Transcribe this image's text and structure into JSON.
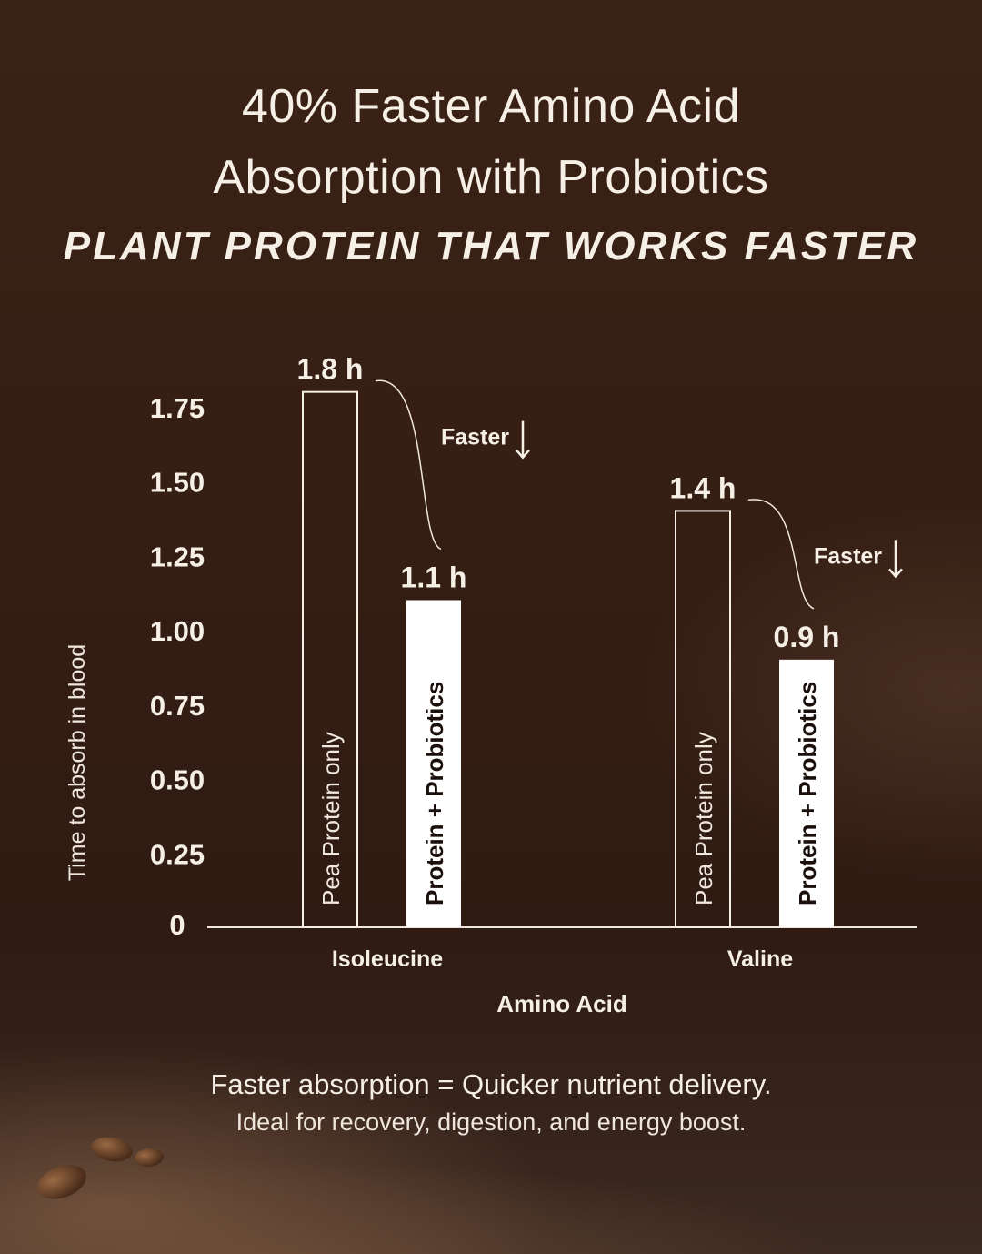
{
  "header": {
    "title_line1": "40% Faster Amino Acid",
    "title_line2": "Absorption with Probiotics",
    "subtitle": "PLANT PROTEIN THAT WORKS FASTER"
  },
  "chart_data": {
    "type": "bar",
    "categories": [
      "Isoleucine",
      "Valine"
    ],
    "series": [
      {
        "name": "Pea Protein only",
        "values": [
          1.8,
          1.4
        ],
        "labels": [
          "1.8 h",
          "1.4 h"
        ],
        "style": "outline"
      },
      {
        "name": "Protein + Probiotics",
        "values": [
          1.1,
          0.9
        ],
        "labels": [
          "1.1 h",
          "0.9 h"
        ],
        "style": "filled"
      }
    ],
    "annotation": "Faster",
    "yticks": [
      "0",
      "0.25",
      "0.50",
      "0.75",
      "1.00",
      "1.25",
      "1.50",
      "1.75"
    ],
    "ytick_values": [
      0,
      0.25,
      0.5,
      0.75,
      1.0,
      1.25,
      1.5,
      1.75
    ],
    "ylim": [
      0,
      1.9
    ],
    "xlabel": "Amino Acid",
    "ylabel": "Time to absorb in blood",
    "grid": false,
    "legend": "none"
  },
  "footer": {
    "line1": "Faster absorption = Quicker nutrient delivery.",
    "line2": "Ideal for recovery, digestion, and energy boost."
  },
  "colors": {
    "background": "#361e14",
    "text": "#f6efe6",
    "bar_fill": "#ffffff",
    "bar_outline": "#f6efe6",
    "filled_bar_text": "#1a0f0a"
  }
}
